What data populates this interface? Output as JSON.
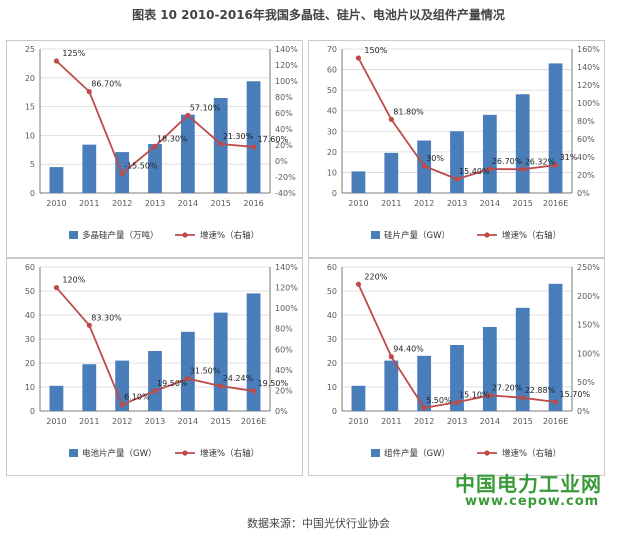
{
  "title": "图表 10  2010-2016年我国多晶硅、硅片、电池片以及组件产量情况",
  "source": "数据来源：中国光伏行业协会",
  "watermark": {
    "name": "中国电力工业网",
    "url": "www.cepow.com"
  },
  "colors": {
    "bar": "#4a7ebb",
    "line": "#be4b48",
    "grid": "#d9d9d9",
    "axis": "#595959"
  },
  "chart_data": [
    {
      "type": "bar",
      "categories": [
        "2010",
        "2011",
        "2012",
        "2013",
        "2014",
        "2015",
        "2016"
      ],
      "series": [
        {
          "name": "多晶硅产量（万吨）",
          "type": "bar",
          "axis": "left",
          "values": [
            4.5,
            8.4,
            7.1,
            8.5,
            13.6,
            16.5,
            19.4
          ]
        },
        {
          "name": "增速%（右轴）",
          "type": "line",
          "axis": "right",
          "values": [
            125,
            86.7,
            -15.5,
            18.3,
            57.1,
            21.3,
            17.6
          ],
          "labels": [
            "125%",
            "86.70%",
            "-15.50%",
            "18.30%",
            "57.10%",
            "21.30%",
            "17.60%"
          ]
        }
      ],
      "yticks_left": [
        "0",
        "5",
        "10",
        "15",
        "20",
        "25"
      ],
      "ylim_left": [
        0,
        25
      ],
      "yticks_right": [
        "-40%",
        "-20%",
        "0%",
        "20%",
        "40%",
        "60%",
        "80%",
        "100%",
        "120%",
        "140%"
      ],
      "ylim_right": [
        -40,
        140
      ],
      "grid": true,
      "legend_position": "bottom"
    },
    {
      "type": "bar",
      "categories": [
        "2010",
        "2011",
        "2012",
        "2013",
        "2014",
        "2015",
        "2016E"
      ],
      "series": [
        {
          "name": "硅片产量（GW）",
          "type": "bar",
          "axis": "left",
          "values": [
            10.5,
            19.5,
            25.5,
            30,
            38,
            48,
            63
          ]
        },
        {
          "name": "增速%（右轴）",
          "type": "line",
          "axis": "right",
          "values": [
            150,
            81.8,
            30,
            15.4,
            26.7,
            26.32,
            31
          ],
          "labels": [
            "150%",
            "81.80%",
            "30%",
            "15.40%",
            "26.70%",
            "26.32%",
            "31%"
          ]
        }
      ],
      "yticks_left": [
        "0",
        "10",
        "20",
        "30",
        "40",
        "50",
        "60",
        "70"
      ],
      "ylim_left": [
        0,
        70
      ],
      "yticks_right": [
        "0%",
        "20%",
        "40%",
        "60%",
        "80%",
        "100%",
        "120%",
        "140%",
        "160%"
      ],
      "ylim_right": [
        0,
        160
      ],
      "grid": true,
      "legend_position": "bottom"
    },
    {
      "type": "bar",
      "categories": [
        "2010",
        "2011",
        "2012",
        "2013",
        "2014",
        "2015",
        "2016E"
      ],
      "series": [
        {
          "name": "电池片产量（GW）",
          "type": "bar",
          "axis": "left",
          "values": [
            10.5,
            19.5,
            21,
            25,
            33,
            41,
            49
          ]
        },
        {
          "name": "增速%（右轴）",
          "type": "line",
          "axis": "right",
          "values": [
            120,
            83.3,
            6.1,
            19.5,
            31.5,
            24.24,
            19.5
          ],
          "labels": [
            "120%",
            "83.30%",
            "6.10%",
            "19.50%",
            "31.50%",
            "24.24%",
            "19.50%"
          ]
        }
      ],
      "yticks_left": [
        "0",
        "10",
        "20",
        "30",
        "40",
        "50",
        "60"
      ],
      "ylim_left": [
        0,
        60
      ],
      "yticks_right": [
        "0%",
        "20%",
        "40%",
        "60%",
        "80%",
        "100%",
        "120%",
        "140%"
      ],
      "ylim_right": [
        0,
        140
      ],
      "grid": true,
      "legend_position": "bottom"
    },
    {
      "type": "bar",
      "categories": [
        "2010",
        "2011",
        "2012",
        "2013",
        "2014",
        "2015",
        "2016E"
      ],
      "series": [
        {
          "name": "组件产量（GW）",
          "type": "bar",
          "axis": "left",
          "values": [
            10.5,
            21,
            23,
            27.5,
            35,
            43,
            53
          ]
        },
        {
          "name": "增速%（右轴）",
          "type": "line",
          "axis": "right",
          "values": [
            220,
            94.4,
            5.5,
            15.1,
            27.2,
            22.88,
            15.7
          ],
          "labels": [
            "220%",
            "94.40%",
            "5.50%",
            "15.10%",
            "27.20%",
            "22.88%",
            "15.70%"
          ]
        }
      ],
      "yticks_left": [
        "0",
        "10",
        "20",
        "30",
        "40",
        "50",
        "60"
      ],
      "ylim_left": [
        0,
        60
      ],
      "yticks_right": [
        "0%",
        "50%",
        "100%",
        "150%",
        "200%",
        "250%"
      ],
      "ylim_right": [
        0,
        250
      ],
      "grid": true,
      "legend_position": "bottom"
    }
  ]
}
